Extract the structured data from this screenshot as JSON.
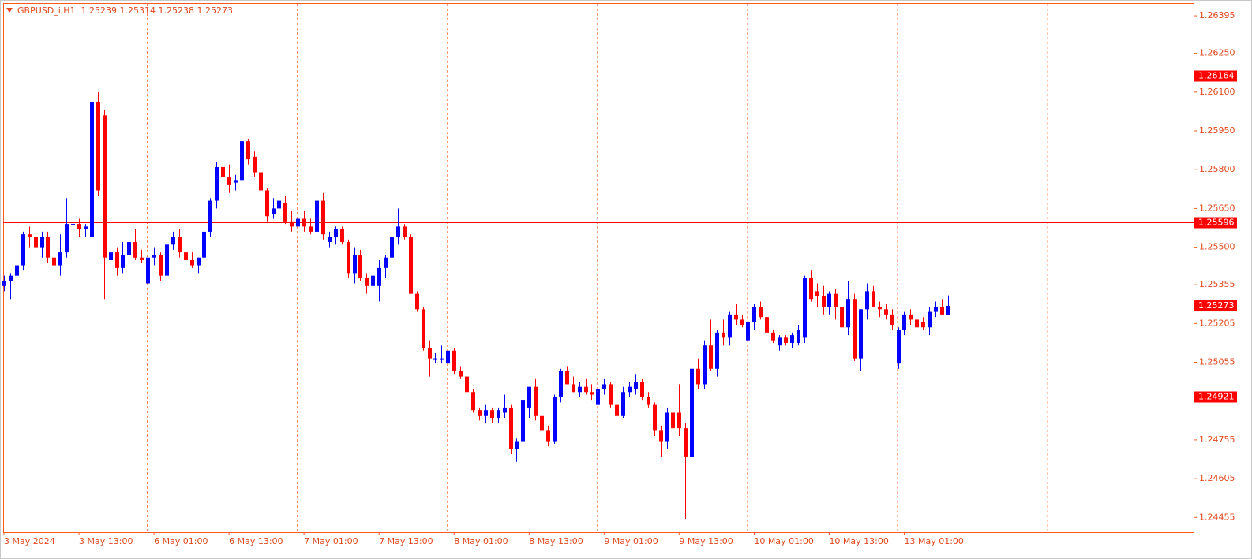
{
  "chart_data": {
    "type": "candlestick",
    "title": "GBPUSD_i,H1",
    "categories": [
      "3 May 2024",
      null,
      null,
      null,
      null,
      null,
      null,
      null,
      null,
      null,
      null,
      null,
      "3 May 13:00",
      null,
      null,
      null,
      null,
      null,
      null,
      null,
      null,
      null,
      null,
      null,
      "6 May 01:00",
      null,
      null,
      null,
      null,
      null,
      null,
      null,
      null,
      null,
      null,
      null,
      "6 May 13:00",
      null,
      null,
      null,
      null,
      null,
      null,
      null,
      null,
      null,
      null,
      null,
      "7 May 01:00",
      null,
      null,
      null,
      null,
      null,
      null,
      null,
      null,
      null,
      null,
      null,
      "7 May 13:00",
      null,
      null,
      null,
      null,
      null,
      null,
      null,
      null,
      null,
      null,
      null,
      "8 May 01:00",
      null,
      null,
      null,
      null,
      null,
      null,
      null,
      null,
      null,
      null,
      null,
      "8 May 13:00",
      null,
      null,
      null,
      null,
      null,
      null,
      null,
      null,
      null,
      null,
      null,
      "9 May 01:00",
      null,
      null,
      null,
      null,
      null,
      null,
      null,
      null,
      null,
      null,
      null,
      "9 May 13:00",
      null,
      null,
      null,
      null,
      null,
      null,
      null,
      null,
      null,
      null,
      null,
      "10 May 01:00",
      null,
      null,
      null,
      null,
      null,
      null,
      null,
      null,
      null,
      null,
      null,
      "10 May 13:00",
      null,
      null,
      null,
      null,
      null,
      null,
      null,
      null,
      null,
      null,
      null,
      "13 May 01:00",
      null,
      null,
      null,
      null,
      null,
      null,
      null
    ],
    "open": [
      1.2535,
      1.2537,
      1.2539,
      1.2543,
      1.2555,
      1.2554,
      1.255,
      1.2554,
      1.2546,
      1.2543,
      1.2548,
      1.2559,
      1.2559,
      1.2557,
      1.2554,
      1.2606,
      1.2601,
      1.2545,
      1.2548,
      1.2542,
      1.2547,
      1.2552,
      1.2546,
      1.2536,
      1.2546,
      1.2547,
      1.2539,
      1.2551,
      1.2554,
      1.2548,
      1.2545,
      1.2543,
      1.2546,
      1.2556,
      1.2568,
      1.2581,
      1.2577,
      1.2575,
      1.2576,
      1.2591,
      1.2585,
      1.2579,
      1.2572,
      1.2563,
      1.2565,
      1.2567,
      1.256,
      1.2558,
      1.2561,
      1.2558,
      1.2556,
      1.2568,
      1.2552,
      1.2554,
      1.2557,
      1.2552,
      1.254,
      1.2547,
      1.2538,
      1.2535,
      1.2535,
      1.2542,
      1.2546,
      1.2554,
      1.2558,
      1.2554,
      1.2532,
      1.2526,
      1.2511,
      1.2507,
      1.2507,
      1.2505,
      1.251,
      1.2502,
      1.25,
      1.2494,
      1.2487,
      1.2485,
      1.2487,
      1.2484,
      1.2486,
      1.2488,
      1.2472,
      1.2475,
      1.2488,
      1.2496,
      1.2485,
      1.2479,
      1.2475,
      1.2492,
      1.2502,
      1.2497,
      1.2494,
      1.2496,
      1.2494,
      1.2489,
      1.2495,
      1.2497,
      1.2489,
      1.2485,
      1.2494,
      1.2495,
      1.2498,
      1.2492,
      1.2489,
      1.2479,
      1.2475,
      1.2486,
      1.2486,
      1.248,
      1.2469,
      1.2503,
      1.2497,
      1.2512,
      1.2503,
      1.2517,
      1.2515,
      1.2524,
      1.2522,
      1.2514,
      1.2521,
      1.2527,
      1.2523,
      1.2517,
      1.2512,
      1.2515,
      1.2513,
      1.2513,
      1.2515,
      1.2538,
      1.2533,
      1.2531,
      1.2527,
      1.2532,
      1.2527,
      1.2519,
      1.253,
      1.2507,
      1.2526,
      1.2533,
      1.2527,
      1.2526,
      1.2524,
      1.2505,
      1.2518,
      1.2524,
      1.2522,
      1.2521,
      1.2519,
      1.2525,
      1.2527,
      1.25239
    ],
    "high": [
      1.2539,
      1.254,
      1.2547,
      1.2556,
      1.2558,
      1.2555,
      1.2556,
      1.2556,
      1.2549,
      1.2555,
      1.2569,
      1.2565,
      1.2561,
      1.2559,
      1.2634,
      1.261,
      1.2603,
      1.2563,
      1.255,
      1.2552,
      1.2553,
      1.2557,
      1.2549,
      1.2547,
      1.255,
      1.2548,
      1.2552,
      1.2556,
      1.2557,
      1.255,
      1.2548,
      1.2546,
      1.2559,
      1.2569,
      1.2583,
      1.2584,
      1.2582,
      1.2578,
      1.2594,
      1.2592,
      1.2587,
      1.258,
      1.2573,
      1.2569,
      1.257,
      1.257,
      1.2564,
      1.2563,
      1.2564,
      1.2561,
      1.2569,
      1.2571,
      1.2556,
      1.2558,
      1.2558,
      1.2553,
      1.255,
      1.2549,
      1.254,
      1.2541,
      1.2545,
      1.2547,
      1.2556,
      1.2565,
      1.2559,
      1.2555,
      1.2533,
      1.2527,
      1.2514,
      1.2509,
      1.2512,
      1.2513,
      1.2511,
      1.2504,
      1.2501,
      1.2495,
      1.2488,
      1.2489,
      1.2488,
      1.2488,
      1.2493,
      1.2489,
      1.2476,
      1.2493,
      1.2496,
      1.2499,
      1.2487,
      1.2481,
      1.2493,
      1.2503,
      1.2504,
      1.25,
      1.2498,
      1.2499,
      1.2497,
      1.2497,
      1.2499,
      1.2498,
      1.249,
      1.2496,
      1.2498,
      1.2501,
      1.2499,
      1.2494,
      1.249,
      1.2481,
      1.2488,
      1.2489,
      1.2497,
      1.2482,
      1.2504,
      1.2507,
      1.2514,
      1.2522,
      1.2518,
      1.2522,
      1.2525,
      1.2528,
      1.2524,
      1.2524,
      1.2528,
      1.2529,
      1.2525,
      1.2518,
      1.2516,
      1.2516,
      1.2517,
      1.252,
      1.2539,
      1.2541,
      1.2536,
      1.2535,
      1.2533,
      1.2534,
      1.2529,
      1.2537,
      1.2532,
      1.2526,
      1.2536,
      1.2535,
      1.2529,
      1.2528,
      1.2526,
      1.2519,
      1.2525,
      1.2526,
      1.2524,
      1.2523,
      1.2527,
      1.2529,
      1.253,
      1.25314
    ],
    "low": [
      1.2533,
      1.253,
      1.253,
      1.2541,
      1.255,
      1.2547,
      1.2546,
      1.2544,
      1.254,
      1.2539,
      1.2546,
      1.2554,
      1.2554,
      1.2554,
      1.2553,
      1.257,
      1.253,
      1.254,
      1.2539,
      1.254,
      1.2543,
      1.2545,
      1.2544,
      1.2534,
      1.2543,
      1.2537,
      1.2536,
      1.2549,
      1.2546,
      1.2543,
      1.2542,
      1.254,
      1.2544,
      1.2554,
      1.2565,
      1.2575,
      1.2571,
      1.2572,
      1.2573,
      1.2582,
      1.2577,
      1.257,
      1.256,
      1.2561,
      1.2563,
      1.2559,
      1.2556,
      1.2556,
      1.2556,
      1.2555,
      1.2554,
      1.2553,
      1.255,
      1.2551,
      1.2551,
      1.2538,
      1.2536,
      1.2537,
      1.2532,
      1.2533,
      1.2529,
      1.2538,
      1.2543,
      1.2551,
      1.2553,
      1.2532,
      1.2525,
      1.251,
      1.25,
      1.2505,
      1.2505,
      1.2503,
      1.2501,
      1.2499,
      1.2493,
      1.2486,
      1.2483,
      1.2482,
      1.2482,
      1.2482,
      1.2484,
      1.247,
      1.2467,
      1.2473,
      1.2484,
      1.2483,
      1.2478,
      1.2473,
      1.2474,
      1.249,
      1.2497,
      1.2494,
      1.2492,
      1.2493,
      1.2491,
      1.2487,
      1.2493,
      1.2488,
      1.2484,
      1.2484,
      1.2492,
      1.2493,
      1.2491,
      1.2488,
      1.2477,
      1.2469,
      1.2472,
      1.2479,
      1.2477,
      1.2445,
      1.2468,
      1.2495,
      1.2495,
      1.2502,
      1.25,
      1.2512,
      1.2512,
      1.252,
      1.2519,
      1.2512,
      1.2518,
      1.2522,
      1.2516,
      1.2513,
      1.251,
      1.2512,
      1.2511,
      1.2512,
      1.2513,
      1.2529,
      1.2527,
      1.2524,
      1.2524,
      1.2522,
      1.2517,
      1.2516,
      1.2506,
      1.2502,
      1.2522,
      1.2527,
      1.2523,
      1.2522,
      1.2518,
      1.2503,
      1.2516,
      1.252,
      1.2518,
      1.2518,
      1.2516,
      1.2523,
      1.2524,
      1.25238
    ],
    "close": [
      1.2537,
      1.2539,
      1.2543,
      1.2555,
      1.2554,
      1.255,
      1.2554,
      1.2546,
      1.2543,
      1.2548,
      1.2559,
      1.2559,
      1.2557,
      1.2558,
      1.2606,
      1.2572,
      1.2546,
      1.2548,
      1.2542,
      1.2547,
      1.2552,
      1.2546,
      1.2545,
      1.2546,
      1.2547,
      1.2539,
      1.2551,
      1.2554,
      1.2548,
      1.2545,
      1.2543,
      1.2546,
      1.2556,
      1.2568,
      1.2581,
      1.2577,
      1.2574,
      1.2576,
      1.2591,
      1.2584,
      1.2579,
      1.2572,
      1.2562,
      1.2565,
      1.2568,
      1.256,
      1.2558,
      1.2561,
      1.2558,
      1.2556,
      1.2568,
      1.2555,
      1.2554,
      1.2557,
      1.2552,
      1.254,
      1.2547,
      1.2538,
      1.2535,
      1.2539,
      1.2542,
      1.2546,
      1.2554,
      1.2558,
      1.2554,
      1.2532,
      1.2526,
      1.2511,
      1.2507,
      1.2507,
      1.2507,
      1.251,
      1.2502,
      1.25,
      1.2494,
      1.2487,
      1.2485,
      1.2487,
      1.2484,
      1.2487,
      1.2488,
      1.2472,
      1.2475,
      1.2491,
      1.2496,
      1.2485,
      1.2479,
      1.2475,
      1.2492,
      1.2502,
      1.2497,
      1.2494,
      1.2496,
      1.2494,
      1.2493,
      1.2495,
      1.2497,
      1.2489,
      1.2485,
      1.2494,
      1.2496,
      1.2498,
      1.2492,
      1.2489,
      1.2479,
      1.2475,
      1.2486,
      1.248,
      1.248,
      1.2469,
      1.2503,
      1.2497,
      1.2512,
      1.2503,
      1.2517,
      1.2515,
      1.2524,
      1.2522,
      1.252,
      1.2521,
      1.2527,
      1.2523,
      1.2517,
      1.2514,
      1.2515,
      1.2513,
      1.2516,
      1.2518,
      1.2538,
      1.253,
      1.2531,
      1.2527,
      1.2532,
      1.2527,
      1.2519,
      1.253,
      1.2507,
      1.2526,
      1.2533,
      1.2527,
      1.2526,
      1.2524,
      1.252,
      1.2518,
      1.2524,
      1.2522,
      1.2519,
      1.2519,
      1.2525,
      1.2527,
      1.2524,
      1.25273
    ],
    "up_color": "#0000ff",
    "down_color": "#ff0000",
    "ylim": [
      1.24398,
      1.26441
    ],
    "yticks": [
      1.26395,
      {
        "value": 1.2625,
        "label": "1.26250"
      },
      {
        "value": 1.261,
        "label": "1.26100"
      },
      {
        "value": 1.2595,
        "label": "1.25950"
      },
      {
        "value": 1.258,
        "label": "1.25800"
      },
      {
        "value": 1.2565,
        "label": "1.25650"
      },
      {
        "value": 1.255,
        "label": "1.25500"
      },
      1.25355,
      1.25205,
      1.25055,
      1.24755,
      1.24605,
      1.24455
    ],
    "horizontal_lines": [
      1.26164,
      1.25596,
      1.24921
    ],
    "line_color": "#ff0000",
    "grid": false
  }
}
